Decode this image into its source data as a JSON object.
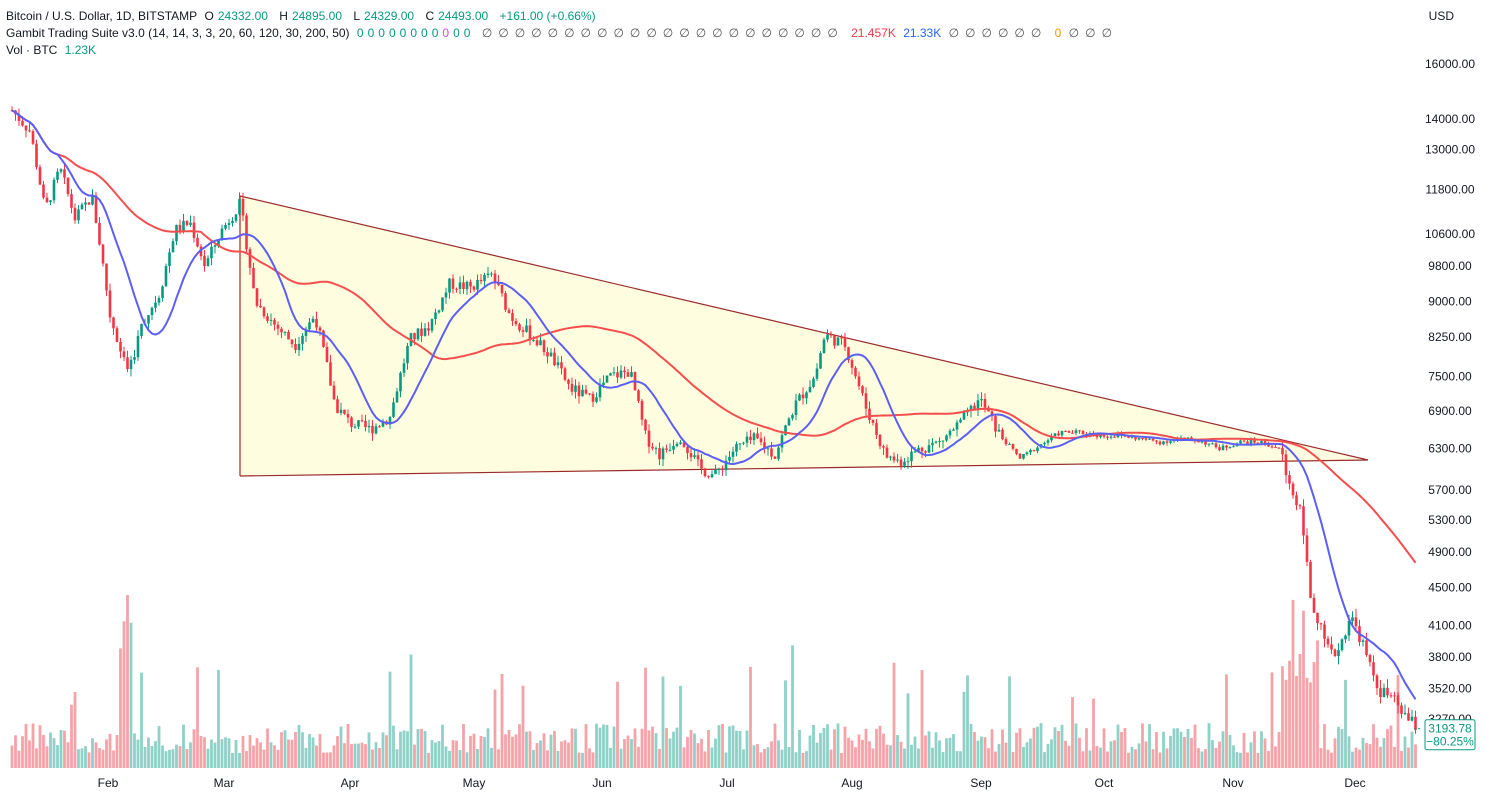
{
  "header": {
    "symbol": "Bitcoin / U.S. Dollar, 1D, BITSTAMP",
    "o_label": "O",
    "o_value": "24332.00",
    "h_label": "H",
    "h_value": "24895.00",
    "l_label": "L",
    "l_value": "24329.00",
    "c_label": "C",
    "c_value": "24493.00",
    "change": "+161.00 (+0.66%)",
    "indicator": "Gambit Trading Suite v3.0 (14, 14, 3, 3, 20, 60, 120, 30, 200, 50)",
    "ind_zeros": [
      "0",
      "0",
      "0",
      "0",
      "0",
      "0",
      "0",
      "0",
      "0",
      "0",
      "0"
    ],
    "ind_null": "∅",
    "ind_red": "21.457K",
    "ind_blue": "21.33K",
    "ind_orange": "0",
    "vol_label": "Vol · BTC",
    "vol_value": "1.23K",
    "currency": "USD"
  },
  "chart_data": {
    "type": "candlestick",
    "x_labels": [
      "Feb",
      "Mar",
      "Apr",
      "May",
      "Jun",
      "Jul",
      "Aug",
      "Sep",
      "Oct",
      "Nov",
      "Dec"
    ],
    "y_ticks": [
      "16000.00",
      "14000.00",
      "13000.00",
      "11800.00",
      "10600.00",
      "9800.00",
      "9000.00",
      "8250.00",
      "7500.00",
      "6900.00",
      "6300.00",
      "5700.00",
      "5300.00",
      "4900.00",
      "4500.00",
      "4100.00",
      "3800.00",
      "3520.00",
      "3270.00"
    ],
    "last_price": "3193.78",
    "last_change": "−80.25%",
    "y_scale": "log",
    "series": [
      {
        "name": "MA fast",
        "color": "#5b5ff3"
      },
      {
        "name": "MA slow",
        "color": "#f44e4e"
      }
    ],
    "pattern": "descending triangle",
    "colors": {
      "up": "#089981",
      "down": "#f23645",
      "vol_up": "#8fd1c8",
      "vol_down": "#f5a3a9",
      "triangle_fill": "#fffde0",
      "triangle_line": "#9c2b2b"
    }
  }
}
